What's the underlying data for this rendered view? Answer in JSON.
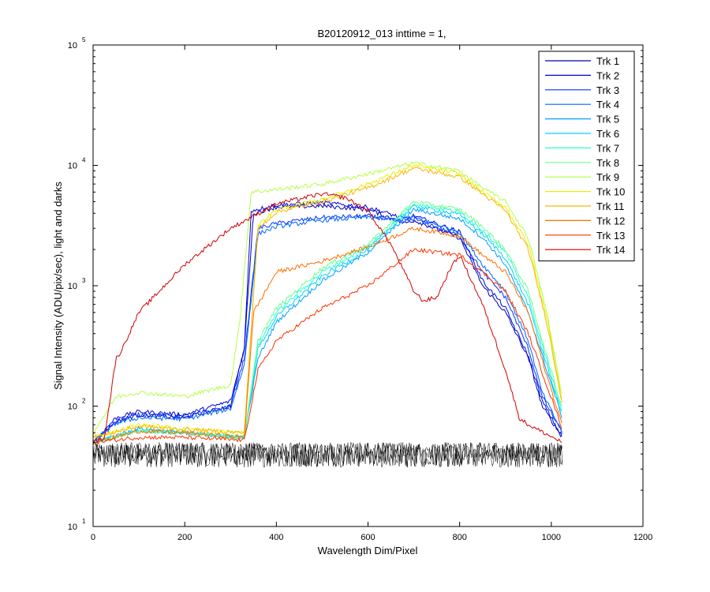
{
  "chart_data": {
    "type": "line",
    "title": "B20120912_013 inttime = 1,",
    "xlabel": "Wavelength Dim/Pixel",
    "ylabel": "Signal Intensity (ADU/pix/sec), light and darks",
    "xlim": [
      0,
      1200
    ],
    "ylim": [
      10,
      100000
    ],
    "yscale": "log",
    "grid": false,
    "legend_position": "top-right",
    "x_ticks": [
      "0",
      "200",
      "400",
      "600",
      "800",
      "1000",
      "1200"
    ],
    "y_ticks": [
      {
        "base": "10",
        "exp": "1"
      },
      {
        "base": "10",
        "exp": "2"
      },
      {
        "base": "10",
        "exp": "3"
      },
      {
        "base": "10",
        "exp": "4"
      },
      {
        "base": "10",
        "exp": "5"
      }
    ],
    "dark_level": {
      "x_range": [
        0,
        1024
      ],
      "min": 31,
      "max": 50,
      "color": "#000000"
    },
    "series": [
      {
        "name": "Trk 1",
        "color": "#0000b4",
        "points": [
          [
            0,
            50
          ],
          [
            50,
            75
          ],
          [
            100,
            85
          ],
          [
            200,
            80
          ],
          [
            300,
            100
          ],
          [
            330,
            300
          ],
          [
            350,
            4000
          ],
          [
            400,
            4500
          ],
          [
            500,
            4600
          ],
          [
            600,
            4300
          ],
          [
            680,
            3300
          ],
          [
            700,
            3500
          ],
          [
            800,
            2500
          ],
          [
            850,
            1000
          ],
          [
            900,
            600
          ],
          [
            950,
            250
          ],
          [
            980,
            100
          ],
          [
            1024,
            55
          ]
        ]
      },
      {
        "name": "Trk 2",
        "color": "#0000e6",
        "points": [
          [
            0,
            50
          ],
          [
            50,
            80
          ],
          [
            100,
            90
          ],
          [
            200,
            85
          ],
          [
            300,
            110
          ],
          [
            330,
            300
          ],
          [
            345,
            4200
          ],
          [
            400,
            4700
          ],
          [
            500,
            4900
          ],
          [
            600,
            4500
          ],
          [
            680,
            3600
          ],
          [
            700,
            3800
          ],
          [
            800,
            2800
          ],
          [
            850,
            1100
          ],
          [
            900,
            650
          ],
          [
            950,
            260
          ],
          [
            980,
            110
          ],
          [
            1024,
            55
          ]
        ]
      },
      {
        "name": "Trk 3",
        "color": "#0033ff",
        "points": [
          [
            0,
            50
          ],
          [
            50,
            75
          ],
          [
            100,
            85
          ],
          [
            200,
            82
          ],
          [
            300,
            100
          ],
          [
            330,
            250
          ],
          [
            360,
            3000
          ],
          [
            400,
            3300
          ],
          [
            500,
            3700
          ],
          [
            600,
            3800
          ],
          [
            680,
            3400
          ],
          [
            700,
            3600
          ],
          [
            800,
            2600
          ],
          [
            850,
            1300
          ],
          [
            900,
            800
          ],
          [
            950,
            300
          ],
          [
            980,
            120
          ],
          [
            1024,
            60
          ]
        ]
      },
      {
        "name": "Trk 4",
        "color": "#0066ff",
        "points": [
          [
            0,
            50
          ],
          [
            50,
            72
          ],
          [
            100,
            80
          ],
          [
            200,
            78
          ],
          [
            300,
            95
          ],
          [
            330,
            220
          ],
          [
            360,
            2700
          ],
          [
            400,
            3100
          ],
          [
            500,
            3500
          ],
          [
            600,
            3700
          ],
          [
            680,
            3500
          ],
          [
            700,
            3700
          ],
          [
            800,
            2800
          ],
          [
            850,
            1500
          ],
          [
            900,
            900
          ],
          [
            950,
            350
          ],
          [
            980,
            130
          ],
          [
            1024,
            60
          ]
        ]
      },
      {
        "name": "Trk 5",
        "color": "#00a0ff",
        "points": [
          [
            0,
            50
          ],
          [
            100,
            65
          ],
          [
            200,
            60
          ],
          [
            330,
            55
          ],
          [
            360,
            250
          ],
          [
            400,
            500
          ],
          [
            500,
            1100
          ],
          [
            600,
            1900
          ],
          [
            700,
            4300
          ],
          [
            800,
            3600
          ],
          [
            850,
            2500
          ],
          [
            900,
            1500
          ],
          [
            950,
            600
          ],
          [
            990,
            200
          ],
          [
            1024,
            80
          ]
        ]
      },
      {
        "name": "Trk 6",
        "color": "#00d2ff",
        "points": [
          [
            0,
            50
          ],
          [
            100,
            63
          ],
          [
            200,
            60
          ],
          [
            330,
            55
          ],
          [
            360,
            300
          ],
          [
            400,
            550
          ],
          [
            500,
            1200
          ],
          [
            600,
            2000
          ],
          [
            700,
            4600
          ],
          [
            800,
            3900
          ],
          [
            850,
            2700
          ],
          [
            900,
            1700
          ],
          [
            950,
            700
          ],
          [
            990,
            220
          ],
          [
            1024,
            85
          ]
        ]
      },
      {
        "name": "Trk 7",
        "color": "#28ffd2",
        "points": [
          [
            0,
            50
          ],
          [
            100,
            62
          ],
          [
            200,
            60
          ],
          [
            330,
            55
          ],
          [
            360,
            320
          ],
          [
            400,
            600
          ],
          [
            500,
            1300
          ],
          [
            600,
            2100
          ],
          [
            700,
            4800
          ],
          [
            800,
            4100
          ],
          [
            850,
            2900
          ],
          [
            900,
            1900
          ],
          [
            950,
            800
          ],
          [
            990,
            240
          ],
          [
            1024,
            90
          ]
        ]
      },
      {
        "name": "Trk 8",
        "color": "#6eff8c",
        "points": [
          [
            0,
            50
          ],
          [
            100,
            62
          ],
          [
            200,
            60
          ],
          [
            330,
            55
          ],
          [
            360,
            350
          ],
          [
            400,
            650
          ],
          [
            500,
            1400
          ],
          [
            600,
            2200
          ],
          [
            700,
            5000
          ],
          [
            800,
            4300
          ],
          [
            850,
            3100
          ],
          [
            900,
            2000
          ],
          [
            950,
            900
          ],
          [
            990,
            260
          ],
          [
            1024,
            95
          ]
        ]
      },
      {
        "name": "Trk 9",
        "color": "#b4ff46",
        "points": [
          [
            0,
            60
          ],
          [
            50,
            120
          ],
          [
            100,
            130
          ],
          [
            200,
            120
          ],
          [
            300,
            150
          ],
          [
            320,
            500
          ],
          [
            345,
            6000
          ],
          [
            400,
            6300
          ],
          [
            500,
            7000
          ],
          [
            600,
            8500
          ],
          [
            700,
            10500
          ],
          [
            800,
            9000
          ],
          [
            850,
            6500
          ],
          [
            900,
            5000
          ],
          [
            950,
            2500
          ],
          [
            990,
            600
          ],
          [
            1024,
            120
          ]
        ]
      },
      {
        "name": "Trk 10",
        "color": "#e6f000",
        "points": [
          [
            0,
            55
          ],
          [
            100,
            70
          ],
          [
            200,
            65
          ],
          [
            330,
            60
          ],
          [
            360,
            3200
          ],
          [
            400,
            4300
          ],
          [
            500,
            5200
          ],
          [
            600,
            7000
          ],
          [
            700,
            10000
          ],
          [
            800,
            8500
          ],
          [
            850,
            6000
          ],
          [
            900,
            4500
          ],
          [
            950,
            2200
          ],
          [
            990,
            550
          ],
          [
            1024,
            110
          ]
        ]
      },
      {
        "name": "Trk 11",
        "color": "#ffb400",
        "points": [
          [
            0,
            55
          ],
          [
            100,
            68
          ],
          [
            200,
            64
          ],
          [
            330,
            60
          ],
          [
            360,
            3000
          ],
          [
            400,
            4100
          ],
          [
            500,
            5000
          ],
          [
            600,
            6500
          ],
          [
            700,
            9500
          ],
          [
            800,
            8000
          ],
          [
            850,
            5800
          ],
          [
            900,
            4200
          ],
          [
            950,
            2000
          ],
          [
            990,
            500
          ],
          [
            1024,
            105
          ]
        ]
      },
      {
        "name": "Trk 12",
        "color": "#ff6e00",
        "points": [
          [
            0,
            50
          ],
          [
            100,
            62
          ],
          [
            200,
            60
          ],
          [
            330,
            55
          ],
          [
            350,
            600
          ],
          [
            400,
            1300
          ],
          [
            500,
            1600
          ],
          [
            600,
            2100
          ],
          [
            700,
            3000
          ],
          [
            800,
            2600
          ],
          [
            850,
            1800
          ],
          [
            900,
            1300
          ],
          [
            950,
            600
          ],
          [
            990,
            180
          ],
          [
            1024,
            70
          ]
        ]
      },
      {
        "name": "Trk 13",
        "color": "#ff3200",
        "points": [
          [
            0,
            50
          ],
          [
            100,
            55
          ],
          [
            200,
            55
          ],
          [
            330,
            52
          ],
          [
            360,
            200
          ],
          [
            400,
            350
          ],
          [
            500,
            650
          ],
          [
            600,
            1000
          ],
          [
            700,
            2000
          ],
          [
            800,
            1800
          ],
          [
            850,
            1300
          ],
          [
            900,
            900
          ],
          [
            950,
            400
          ],
          [
            990,
            150
          ],
          [
            1024,
            65
          ]
        ]
      },
      {
        "name": "Trk 14",
        "color": "#d20000",
        "points": [
          [
            0,
            50
          ],
          [
            25,
            55
          ],
          [
            50,
            250
          ],
          [
            60,
            280
          ],
          [
            100,
            600
          ],
          [
            200,
            1500
          ],
          [
            300,
            3000
          ],
          [
            400,
            4800
          ],
          [
            500,
            5800
          ],
          [
            550,
            5400
          ],
          [
            600,
            4200
          ],
          [
            650,
            2200
          ],
          [
            700,
            900
          ],
          [
            720,
            750
          ],
          [
            750,
            800
          ],
          [
            780,
            1400
          ],
          [
            800,
            1800
          ],
          [
            850,
            700
          ],
          [
            900,
            200
          ],
          [
            930,
            80
          ],
          [
            950,
            70
          ],
          [
            1024,
            50
          ]
        ]
      }
    ]
  }
}
